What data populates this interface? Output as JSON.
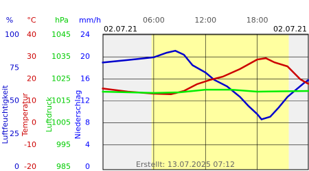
{
  "chart_data": {
    "type": "line",
    "date_left": "02.07.21",
    "date_right": "02.07.21",
    "created": "Erstellt: 13.07.2025 07:12",
    "xlim": [
      0,
      24
    ],
    "xticks": [
      {
        "value": 6,
        "label": "06:00"
      },
      {
        "value": 12,
        "label": "12:00"
      },
      {
        "value": 18,
        "label": "18:00"
      }
    ],
    "daylight": [
      5.75,
      21.65
    ],
    "yaxes": [
      {
        "unit": "%",
        "title": "Luftfeuchtigkeit",
        "color": "#0000cc",
        "lim": [
          0,
          100
        ],
        "ticks": [
          0,
          25,
          50,
          75,
          100
        ]
      },
      {
        "unit": "°C",
        "title": "Temperatur",
        "color": "#cc0000",
        "lim": [
          -20,
          40
        ],
        "ticks": [
          -20,
          -10,
          0,
          10,
          20,
          30,
          40
        ]
      },
      {
        "unit": "hPa",
        "title": "Luftdruck",
        "color": "#00cc00",
        "lim": [
          985,
          1045
        ],
        "ticks": [
          985,
          995,
          1005,
          1015,
          1025,
          1035,
          1045
        ]
      },
      {
        "unit": "mm/h",
        "title": "Niederschlag",
        "color": "#0000ff",
        "lim": [
          0,
          24
        ],
        "ticks": [
          0,
          4,
          8,
          12,
          16,
          20,
          24
        ],
        "grid": true
      }
    ],
    "series": [
      {
        "name": "Luftfeuchtigkeit",
        "axis": 0,
        "color": "#0000cc",
        "x": [
          0,
          3,
          6,
          7.5,
          8.5,
          9.5,
          10.5,
          12,
          13,
          14.5,
          16,
          17,
          18,
          18.5,
          19.5,
          20.5,
          21.5,
          22.5,
          23.5,
          24
        ],
        "values": [
          79,
          81,
          83,
          86.5,
          88,
          85,
          77,
          71.5,
          66,
          61,
          53,
          46,
          40,
          36,
          38,
          45,
          53,
          58.5,
          64,
          66
        ]
      },
      {
        "name": "Temperatur",
        "axis": 1,
        "color": "#cc0000",
        "x": [
          0,
          3,
          6,
          8,
          9.5,
          11,
          12.5,
          14,
          16,
          18,
          19,
          20,
          21.5,
          23,
          24
        ],
        "values": [
          15.7,
          14.2,
          13.3,
          13,
          14.5,
          17.6,
          19.5,
          21,
          24.5,
          28.8,
          29.4,
          27.5,
          25.7,
          19.8,
          17.6
        ]
      },
      {
        "name": "Luftdruck",
        "axis": 2,
        "color": "#00ee00",
        "x": [
          0,
          6,
          9,
          12,
          15,
          18,
          24
        ],
        "values": [
          1019.2,
          1018.6,
          1018.9,
          1020.1,
          1020.1,
          1019.2,
          1019.5
        ]
      }
    ]
  }
}
